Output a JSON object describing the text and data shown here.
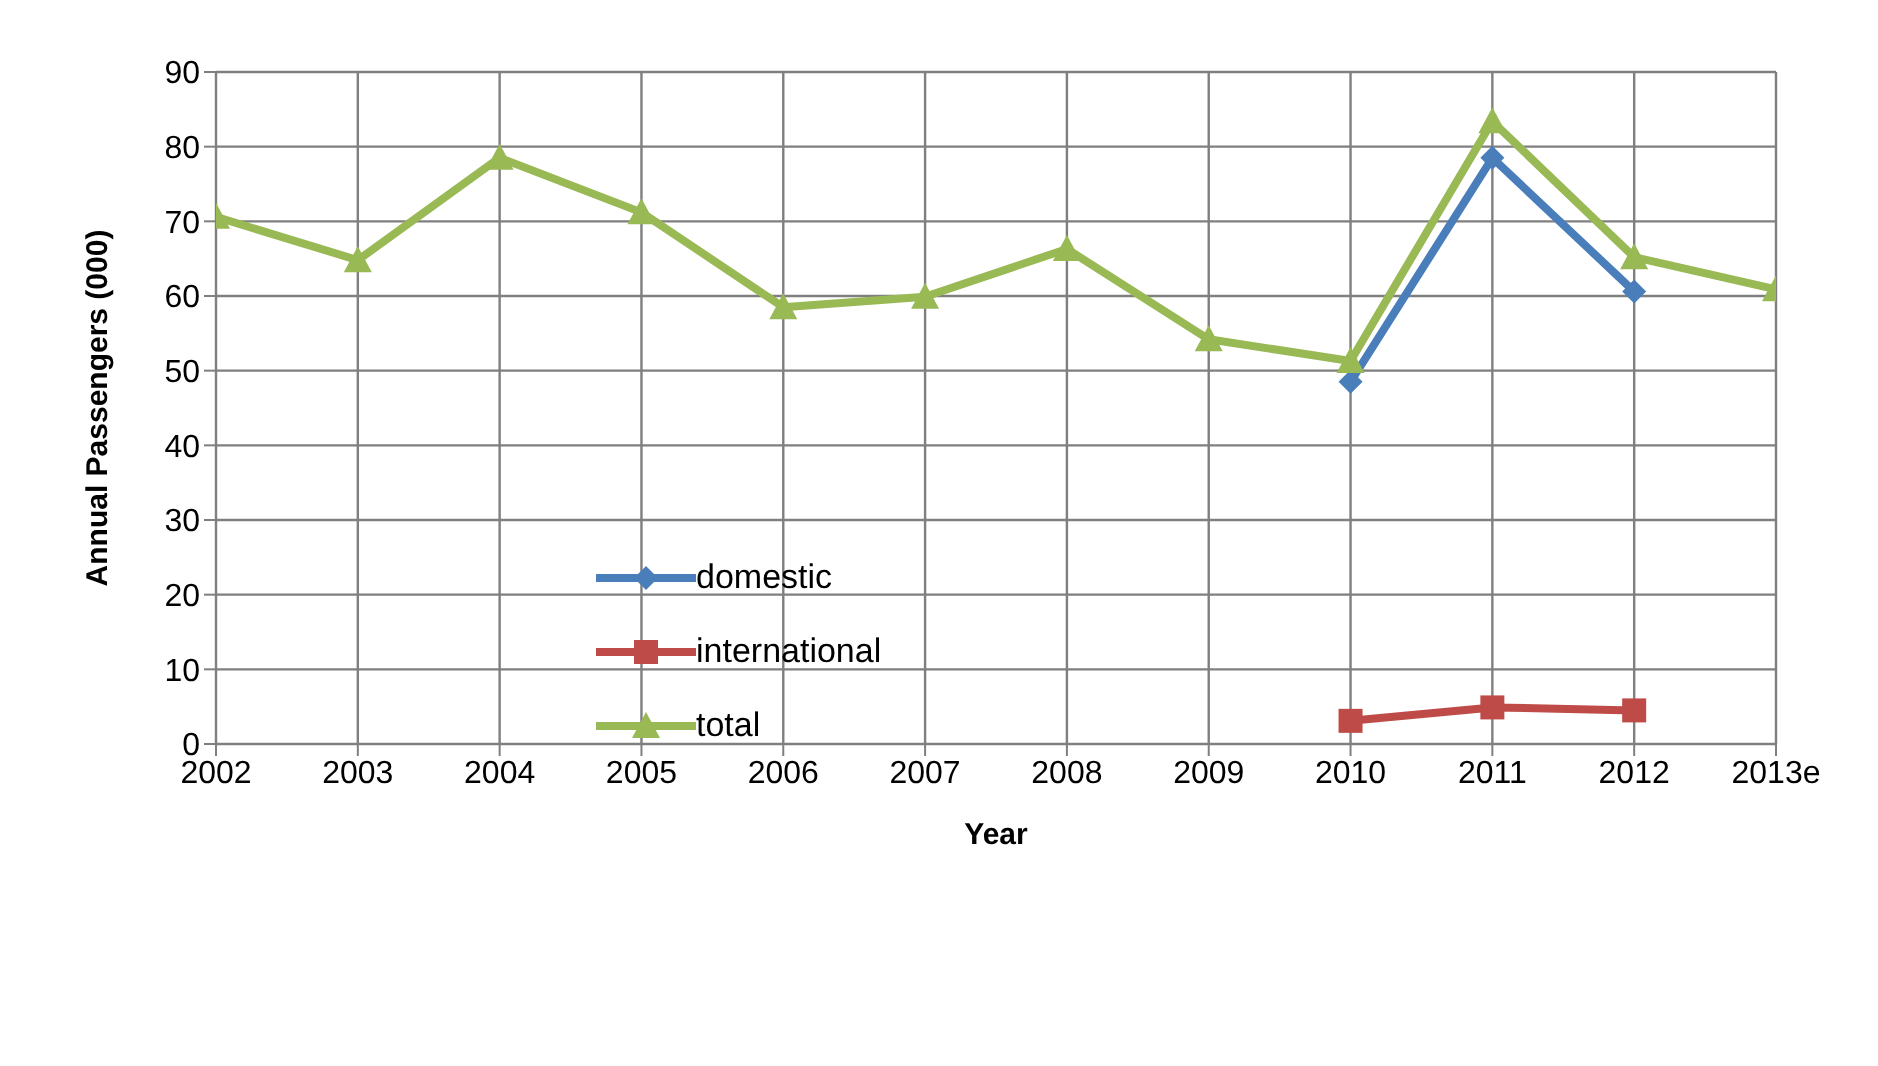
{
  "chart_data": {
    "type": "line",
    "xlabel": "Year",
    "ylabel": "Annual Passengers (000)",
    "categories": [
      "2002",
      "2003",
      "2004",
      "2005",
      "2006",
      "2007",
      "2008",
      "2009",
      "2010",
      "2011",
      "2012",
      "2013e"
    ],
    "series": [
      {
        "name": "domestic",
        "color": "#4a7ebb",
        "marker": "diamond",
        "values": [
          null,
          null,
          null,
          null,
          null,
          null,
          null,
          null,
          48.5,
          78.5,
          60.6,
          null
        ]
      },
      {
        "name": "international",
        "color": "#be4b48",
        "marker": "square",
        "values": [
          null,
          null,
          null,
          null,
          null,
          null,
          null,
          null,
          3.1,
          4.9,
          4.5,
          null
        ]
      },
      {
        "name": "total",
        "color": "#98b954",
        "marker": "triangle",
        "values": [
          70.6,
          64.8,
          78.5,
          71.2,
          58.5,
          59.9,
          66.3,
          54.2,
          51.3,
          83.4,
          65.2,
          60.9
        ]
      }
    ],
    "ylim": [
      0,
      90
    ],
    "yticks": [
      0,
      10,
      20,
      30,
      40,
      50,
      60,
      70,
      80,
      90
    ],
    "grid": true,
    "legend": "center left",
    "line_style": "solid"
  }
}
